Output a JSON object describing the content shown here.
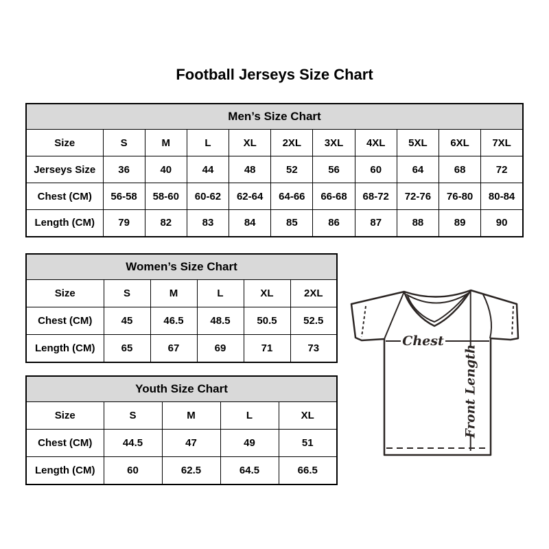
{
  "page": {
    "title": "Football Jerseys Size Chart",
    "background": "#ffffff"
  },
  "colors": {
    "table_header_bg": "#d9d9d9",
    "table_border": "#000000",
    "text": "#000000",
    "diagram_line": "#2b2523"
  },
  "chart_data": [
    {
      "type": "table",
      "title": "Men’s Size Chart",
      "rows": [
        [
          "Size",
          "S",
          "M",
          "L",
          "XL",
          "2XL",
          "3XL",
          "4XL",
          "5XL",
          "6XL",
          "7XL"
        ],
        [
          "Jerseys Size",
          "36",
          "40",
          "44",
          "48",
          "52",
          "56",
          "60",
          "64",
          "68",
          "72"
        ],
        [
          "Chest (CM)",
          "56-58",
          "58-60",
          "60-62",
          "62-64",
          "64-66",
          "66-68",
          "68-72",
          "72-76",
          "76-80",
          "80-84"
        ],
        [
          "Length (CM)",
          "79",
          "82",
          "83",
          "84",
          "85",
          "86",
          "87",
          "88",
          "89",
          "90"
        ]
      ]
    },
    {
      "type": "table",
      "title": "Women’s Size Chart",
      "rows": [
        [
          "Size",
          "S",
          "M",
          "L",
          "XL",
          "2XL"
        ],
        [
          "Chest (CM)",
          "45",
          "46.5",
          "48.5",
          "50.5",
          "52.5"
        ],
        [
          "Length (CM)",
          "65",
          "67",
          "69",
          "71",
          "73"
        ]
      ]
    },
    {
      "type": "table",
      "title": "Youth Size Chart",
      "rows": [
        [
          "Size",
          "S",
          "M",
          "L",
          "XL"
        ],
        [
          "Chest (CM)",
          "44.5",
          "47",
          "49",
          "51"
        ],
        [
          "Length (CM)",
          "60",
          "62.5",
          "64.5",
          "66.5"
        ]
      ]
    }
  ],
  "diagram": {
    "chest_label": "Chest",
    "front_length_label": "Front Length"
  }
}
